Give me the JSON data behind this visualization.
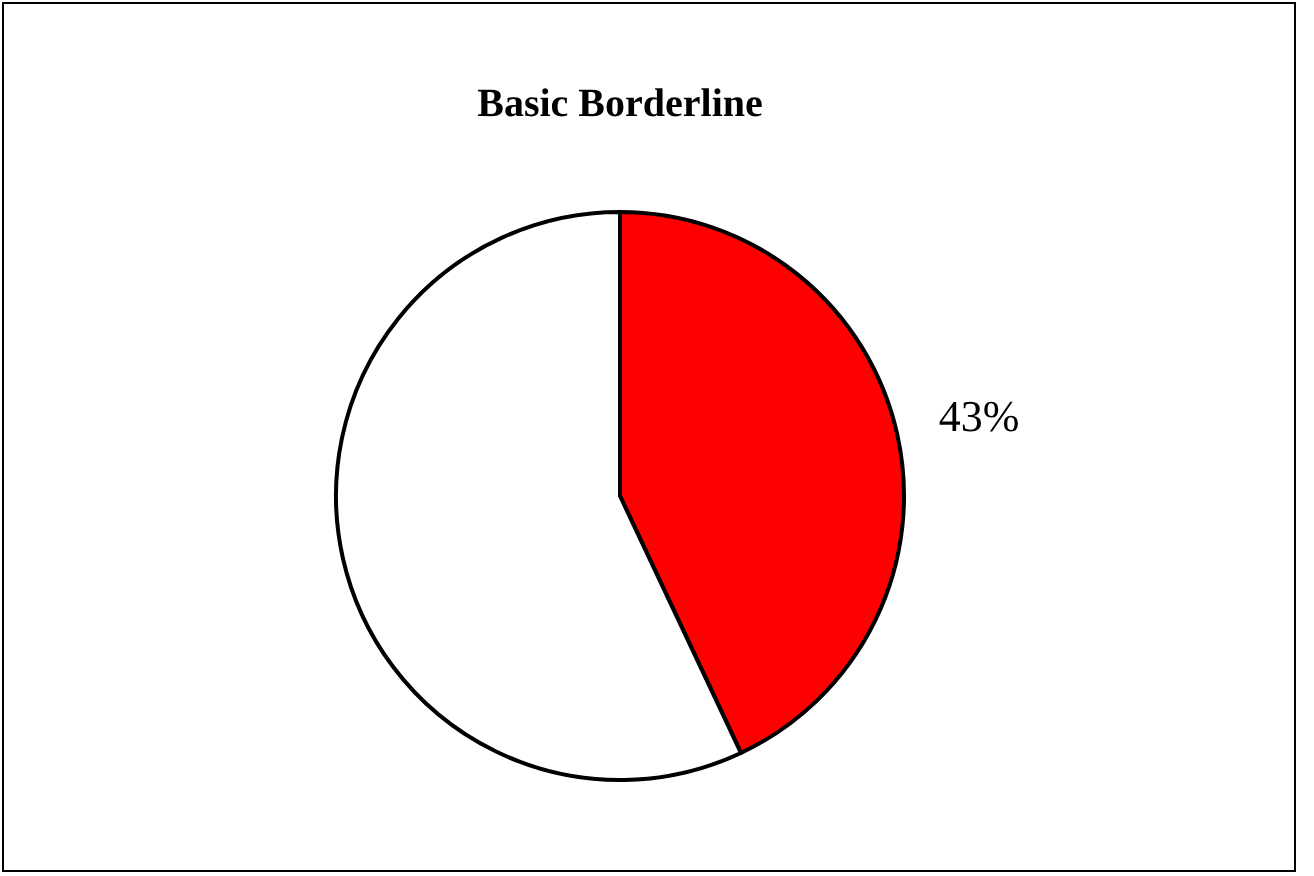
{
  "chart_data": {
    "type": "pie",
    "title": "Basic Borderline",
    "categories": [
      null,
      null
    ],
    "values": [
      43,
      57
    ],
    "colors": [
      "#ff0000",
      "#ffffff"
    ],
    "value_labels": [
      "43%",
      null
    ]
  }
}
